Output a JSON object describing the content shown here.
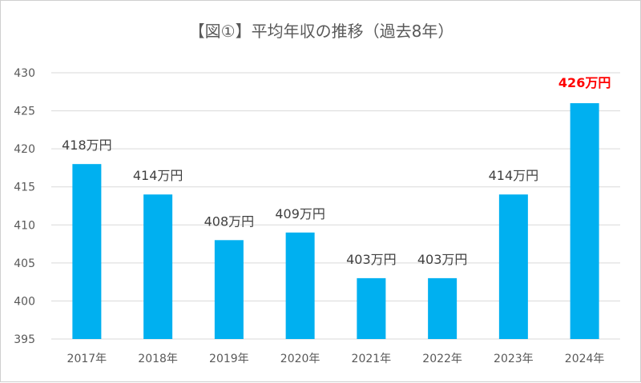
{
  "chart_data": {
    "type": "bar",
    "title": "【図①】平均年収の推移（過去8年）",
    "categories": [
      "2017年",
      "2018年",
      "2019年",
      "2020年",
      "2021年",
      "2022年",
      "2023年",
      "2024年"
    ],
    "values": [
      418,
      414,
      408,
      409,
      403,
      403,
      414,
      426
    ],
    "data_labels": [
      "418万円",
      "414万円",
      "408万円",
      "409万円",
      "403万円",
      "403万円",
      "414万円",
      "426万円"
    ],
    "highlight_index": 7,
    "ylim": [
      395,
      430
    ],
    "yticks": [
      395,
      400,
      405,
      410,
      415,
      420,
      425,
      430
    ],
    "grid": true,
    "colors": {
      "bar": "#00b0f0",
      "highlight_label": "#ff0000",
      "grid": "#d9d9d9"
    }
  }
}
